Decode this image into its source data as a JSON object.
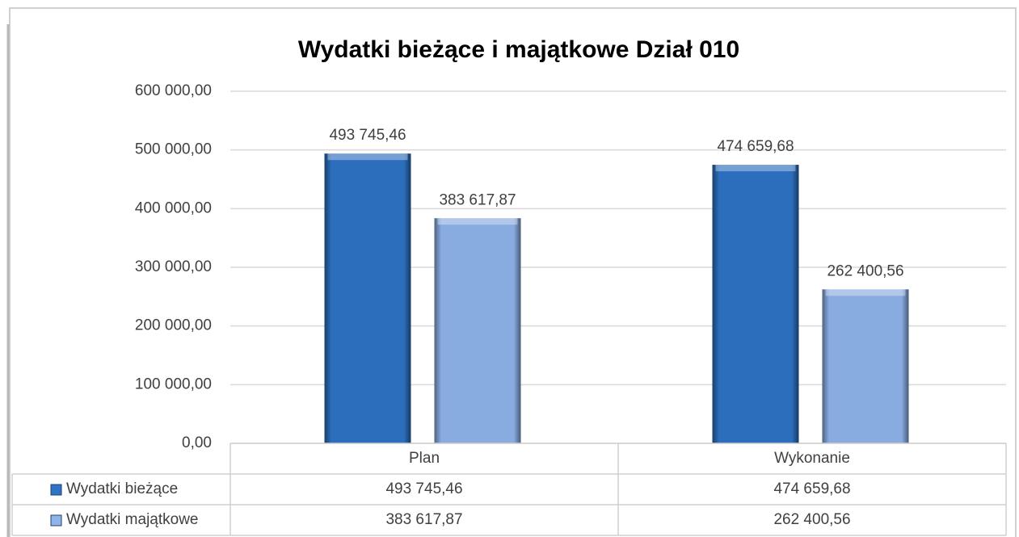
{
  "chart_data": {
    "type": "bar",
    "title": "Wydatki bieżące i majątkowe Dział 010",
    "categories": [
      "Plan",
      "Wykonanie"
    ],
    "series": [
      {
        "name": "Wydatki bieżące",
        "color": "#2e74c6",
        "values": [
          493745.46,
          474659.68
        ],
        "value_labels": [
          "493 745,46",
          "474 659,68"
        ]
      },
      {
        "name": "Wydatki majątkowe",
        "color": "#8fb4ec",
        "values": [
          383617.87,
          262400.56
        ],
        "value_labels": [
          "383 617,87",
          "262 400,56"
        ]
      }
    ],
    "ylim": [
      0,
      600000
    ],
    "yticks": [
      {
        "value": 0,
        "label": "0,00"
      },
      {
        "value": 100000,
        "label": "100 000,00"
      },
      {
        "value": 200000,
        "label": "200 000,00"
      },
      {
        "value": 300000,
        "label": "300 000,00"
      },
      {
        "value": 400000,
        "label": "400 000,00"
      },
      {
        "value": 500000,
        "label": "500 000,00"
      },
      {
        "value": 600000,
        "label": "600 000,00"
      }
    ],
    "grid": true,
    "data_table": true
  }
}
